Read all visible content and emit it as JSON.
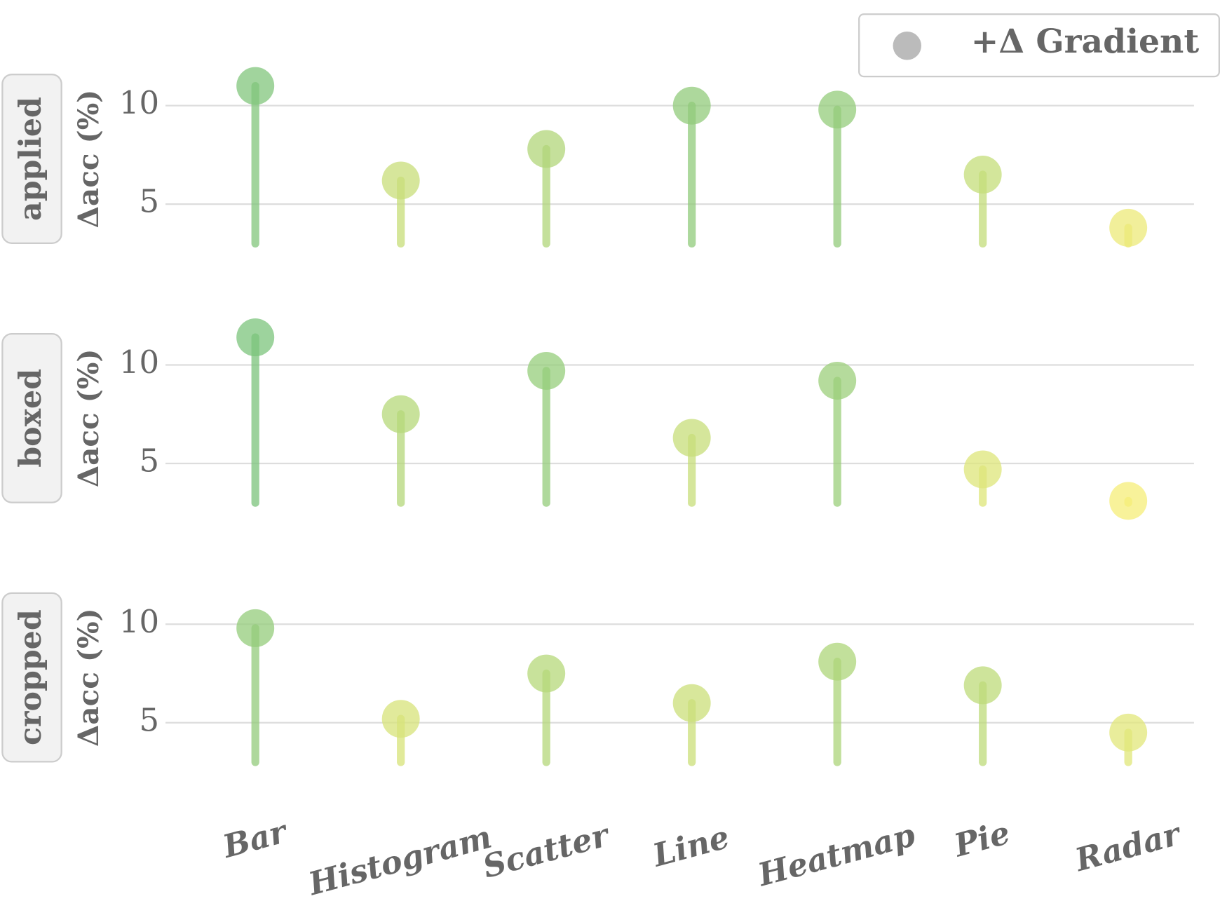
{
  "chart_data": {
    "type": "lollipop",
    "categories": [
      "Bar",
      "Histogram",
      "Scatter",
      "Line",
      "Heatmap",
      "Pie",
      "Radar"
    ],
    "y_label": "Δacc (%)",
    "legend": "+Δ Gradient",
    "legend_color": "#bbbbbb",
    "legend_position": "upper right",
    "colormap": [
      "#f6ee78",
      "#7cc47c"
    ],
    "ylim": [
      3,
      12
    ],
    "yticks": [
      5,
      10
    ],
    "grid": true,
    "series": [
      {
        "name": "applied",
        "values": [
          11.0,
          6.2,
          7.8,
          10.0,
          9.8,
          6.5,
          3.8
        ]
      },
      {
        "name": "boxed",
        "values": [
          11.4,
          7.5,
          9.7,
          6.3,
          9.2,
          4.7,
          3.1
        ]
      },
      {
        "name": "cropped",
        "values": [
          9.8,
          5.2,
          7.5,
          6.0,
          8.1,
          6.9,
          4.5
        ]
      }
    ]
  }
}
